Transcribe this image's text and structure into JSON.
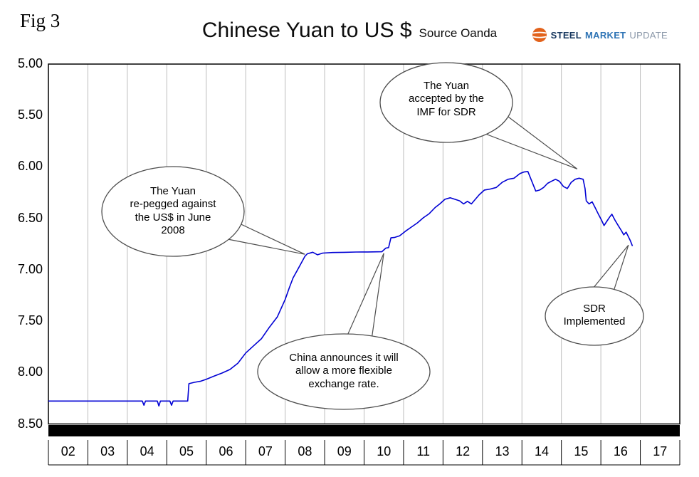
{
  "figure": {
    "fig_label": "Fig 3",
    "title": "Chinese Yuan to US $",
    "source": "Source Oanda"
  },
  "logo": {
    "steel": "STEEL",
    "market": "MARKET",
    "update": "UPDATE"
  },
  "chart_data": {
    "type": "line",
    "title": "Chinese Yuan to US $",
    "source_label": "Source Oanda",
    "xlabel": "",
    "ylabel": "",
    "y_inverted": true,
    "y_min": 5.0,
    "y_max": 8.5,
    "y_ticks": [
      "5.00",
      "5.50",
      "6.00",
      "6.50",
      "7.00",
      "7.50",
      "8.00",
      "8.50"
    ],
    "x_categories": [
      "02",
      "03",
      "04",
      "05",
      "06",
      "07",
      "08",
      "09",
      "10",
      "11",
      "12",
      "13",
      "14",
      "15",
      "16",
      "17"
    ],
    "grid": "vertical-only",
    "legend": "none",
    "series": [
      {
        "name": "Chinese Yuan per US$",
        "color": "#0000D4",
        "points": [
          [
            2002.0,
            8.277
          ],
          [
            2002.3,
            8.277
          ],
          [
            2002.6,
            8.277
          ],
          [
            2002.9,
            8.277
          ],
          [
            2003.2,
            8.277
          ],
          [
            2003.5,
            8.277
          ],
          [
            2003.8,
            8.277
          ],
          [
            2004.1,
            8.277
          ],
          [
            2004.38,
            8.277
          ],
          [
            2004.42,
            8.318
          ],
          [
            2004.46,
            8.277
          ],
          [
            2004.76,
            8.277
          ],
          [
            2004.8,
            8.325
          ],
          [
            2004.84,
            8.277
          ],
          [
            2005.08,
            8.277
          ],
          [
            2005.12,
            8.318
          ],
          [
            2005.16,
            8.277
          ],
          [
            2005.53,
            8.277
          ],
          [
            2005.56,
            8.108
          ],
          [
            2005.7,
            8.095
          ],
          [
            2005.85,
            8.085
          ],
          [
            2006.0,
            8.065
          ],
          [
            2006.2,
            8.035
          ],
          [
            2006.4,
            8.005
          ],
          [
            2006.6,
            7.97
          ],
          [
            2006.8,
            7.91
          ],
          [
            2007.0,
            7.81
          ],
          [
            2007.2,
            7.74
          ],
          [
            2007.4,
            7.67
          ],
          [
            2007.6,
            7.56
          ],
          [
            2007.8,
            7.46
          ],
          [
            2008.0,
            7.29
          ],
          [
            2008.1,
            7.18
          ],
          [
            2008.2,
            7.08
          ],
          [
            2008.3,
            7.01
          ],
          [
            2008.4,
            6.94
          ],
          [
            2008.5,
            6.87
          ],
          [
            2008.56,
            6.845
          ],
          [
            2008.7,
            6.83
          ],
          [
            2008.82,
            6.855
          ],
          [
            2008.95,
            6.838
          ],
          [
            2009.2,
            6.833
          ],
          [
            2009.5,
            6.831
          ],
          [
            2009.8,
            6.828
          ],
          [
            2010.1,
            6.827
          ],
          [
            2010.45,
            6.825
          ],
          [
            2010.55,
            6.79
          ],
          [
            2010.62,
            6.785
          ],
          [
            2010.68,
            6.69
          ],
          [
            2010.78,
            6.685
          ],
          [
            2010.9,
            6.67
          ],
          [
            2011.05,
            6.625
          ],
          [
            2011.2,
            6.585
          ],
          [
            2011.35,
            6.545
          ],
          [
            2011.5,
            6.495
          ],
          [
            2011.65,
            6.455
          ],
          [
            2011.8,
            6.395
          ],
          [
            2011.92,
            6.36
          ],
          [
            2012.05,
            6.315
          ],
          [
            2012.18,
            6.3
          ],
          [
            2012.3,
            6.315
          ],
          [
            2012.42,
            6.33
          ],
          [
            2012.52,
            6.36
          ],
          [
            2012.62,
            6.335
          ],
          [
            2012.72,
            6.36
          ],
          [
            2012.82,
            6.315
          ],
          [
            2012.92,
            6.27
          ],
          [
            2013.05,
            6.225
          ],
          [
            2013.2,
            6.215
          ],
          [
            2013.35,
            6.2
          ],
          [
            2013.5,
            6.15
          ],
          [
            2013.65,
            6.12
          ],
          [
            2013.8,
            6.11
          ],
          [
            2013.95,
            6.065
          ],
          [
            2014.05,
            6.05
          ],
          [
            2014.15,
            6.045
          ],
          [
            2014.25,
            6.14
          ],
          [
            2014.35,
            6.235
          ],
          [
            2014.45,
            6.225
          ],
          [
            2014.55,
            6.2
          ],
          [
            2014.65,
            6.16
          ],
          [
            2014.75,
            6.14
          ],
          [
            2014.85,
            6.12
          ],
          [
            2014.95,
            6.14
          ],
          [
            2015.05,
            6.19
          ],
          [
            2015.15,
            6.21
          ],
          [
            2015.25,
            6.15
          ],
          [
            2015.35,
            6.12
          ],
          [
            2015.45,
            6.11
          ],
          [
            2015.55,
            6.12
          ],
          [
            2015.6,
            6.21
          ],
          [
            2015.63,
            6.33
          ],
          [
            2015.7,
            6.36
          ],
          [
            2015.78,
            6.34
          ],
          [
            2015.86,
            6.4
          ],
          [
            2015.95,
            6.47
          ],
          [
            2016.02,
            6.52
          ],
          [
            2016.08,
            6.57
          ],
          [
            2016.15,
            6.53
          ],
          [
            2016.22,
            6.49
          ],
          [
            2016.28,
            6.46
          ],
          [
            2016.36,
            6.52
          ],
          [
            2016.44,
            6.57
          ],
          [
            2016.52,
            6.62
          ],
          [
            2016.58,
            6.66
          ],
          [
            2016.64,
            6.635
          ],
          [
            2016.7,
            6.68
          ],
          [
            2016.75,
            6.72
          ],
          [
            2016.8,
            6.77
          ]
        ]
      }
    ],
    "annotations": [
      {
        "text": "The Yuan\nre-pegged against\nthe US$ in June\n2008",
        "target_year": 2008.5,
        "target_value": 6.85
      },
      {
        "text": "The Yuan\naccepted by the\nIMF for SDR",
        "target_year": 2015.4,
        "target_value": 6.02
      },
      {
        "text": "China announces it will\nallow a more flexible\nexchange rate.",
        "target_year": 2010.5,
        "target_value": 6.84
      },
      {
        "text": "SDR\nImplemented",
        "target_year": 2016.7,
        "target_value": 6.76
      }
    ]
  }
}
